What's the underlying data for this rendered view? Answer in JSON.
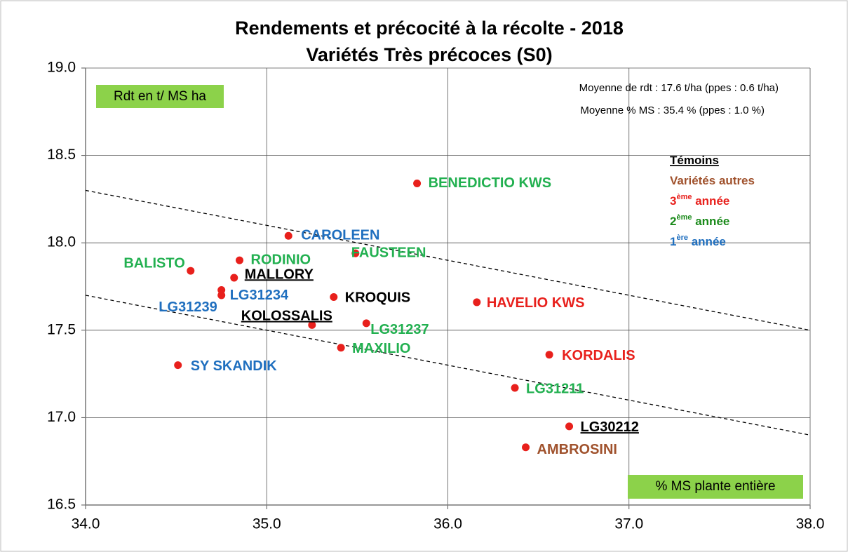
{
  "chart_data": {
    "type": "scatter",
    "title": "Rendements et précocité à la récolte - 2018",
    "subtitle": "Variétés Très précoces (S0)",
    "annotations": [
      "Rdt en t/ MS ha",
      "% MS plante entière",
      "Moyenne de rdt : 17.6 t/ha  (ppes : 0.6 t/ha)",
      "Moyenne % MS : 35.4 % (ppes : 1.0 %)"
    ],
    "xlim": [
      34,
      38
    ],
    "xticks": [
      {
        "value": 34,
        "label": "34.0"
      },
      {
        "value": 35,
        "label": "35.0"
      },
      {
        "value": 36,
        "label": "36.0"
      },
      {
        "value": 37,
        "label": "37.0"
      },
      {
        "value": 38,
        "label": "38.0"
      }
    ],
    "ylim": [
      16.5,
      19
    ],
    "yticks": [
      16.5,
      {
        "value": 17,
        "label": "17.0"
      },
      17.5,
      {
        "value": 18,
        "label": "18.0"
      },
      18.5,
      {
        "value": 19,
        "label": "19.0"
      }
    ],
    "grid": true,
    "marker_color": "#e8201c",
    "points": [
      {
        "name": "BENEDICTIO KWS",
        "x": 35.83,
        "y": 18.34,
        "color": "#22b050"
      },
      {
        "name": "CAROLEEN",
        "x": 35.12,
        "y": 18.04,
        "color": "#1f6fbf"
      },
      {
        "name": "FAUSTEEN",
        "x": 35.49,
        "y": 17.94,
        "color": "#22b050"
      },
      {
        "name": "RODINIO",
        "x": 34.85,
        "y": 17.9,
        "color": "#22b050"
      },
      {
        "name": "BALISTO",
        "x": 34.58,
        "y": 17.84,
        "color": "#22b050"
      },
      {
        "name": "MALLORY",
        "x": 34.82,
        "y": 17.8,
        "color": "#000000",
        "underline": true
      },
      {
        "name": "LG31234",
        "x": 34.75,
        "y": 17.73,
        "color": "#1f6fbf"
      },
      {
        "name": "LG31239",
        "x": 34.75,
        "y": 17.7,
        "color": "#1f6fbf"
      },
      {
        "name": "KROQUIS",
        "x": 35.37,
        "y": 17.69,
        "color": "#000000"
      },
      {
        "name": "HAVELIO KWS",
        "x": 36.16,
        "y": 17.66,
        "color": "#e8201c"
      },
      {
        "name": "KOLOSSALIS",
        "x": 35.25,
        "y": 17.53,
        "color": "#000000",
        "underline": true
      },
      {
        "name": "LG31237",
        "x": 35.55,
        "y": 17.54,
        "color": "#22b050"
      },
      {
        "name": "MAXILIO",
        "x": 35.41,
        "y": 17.4,
        "color": "#22b050"
      },
      {
        "name": "KORDALIS",
        "x": 36.56,
        "y": 17.36,
        "color": "#e8201c"
      },
      {
        "name": "SY SKANDIK",
        "x": 34.51,
        "y": 17.3,
        "color": "#1f6fbf"
      },
      {
        "name": "LG31211",
        "x": 36.37,
        "y": 17.17,
        "color": "#22b050"
      },
      {
        "name": "LG30212",
        "x": 36.67,
        "y": 16.95,
        "color": "#000000",
        "underline": true
      },
      {
        "name": "AMBROSINI",
        "x": 36.43,
        "y": 16.83,
        "color": "#a0522d"
      }
    ],
    "trend_lines": [
      {
        "x": [
          34,
          38
        ],
        "y": [
          18.3,
          17.5
        ]
      },
      {
        "x": [
          34,
          38
        ],
        "y": [
          17.7,
          16.9
        ]
      }
    ],
    "legend": [
      {
        "label": "Témoins",
        "color": "#000000",
        "underline": true
      },
      {
        "label": "Variétés autres",
        "color": "#a0522d"
      },
      {
        "prefix": "3",
        "sup": "ème",
        "label": " année",
        "color": "#e8201c"
      },
      {
        "prefix": "2",
        "sup": "ème",
        "label": " année",
        "color": "#1a8a1a"
      },
      {
        "prefix": "1",
        "sup": "ère",
        "label": " année",
        "color": "#1f6fbf"
      }
    ]
  }
}
